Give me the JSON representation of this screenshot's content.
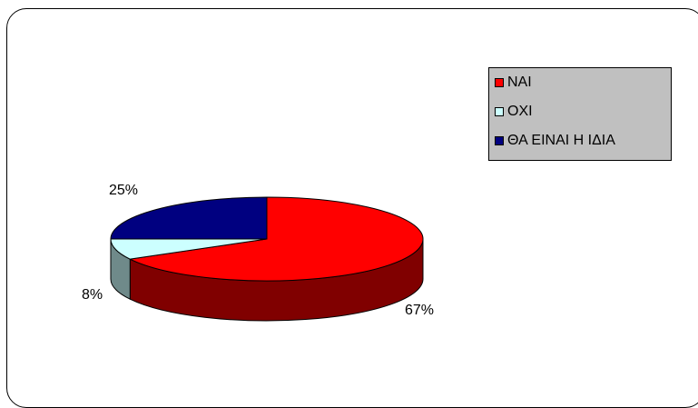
{
  "chart_data": {
    "type": "pie",
    "three_d": true,
    "categories": [
      "ΝΑΙ",
      "ΟΧΙ",
      "ΘΑ ΕΙΝΑΙ Η ΙΔΙΑ"
    ],
    "values": [
      67,
      8,
      25
    ],
    "data_labels": [
      "67%",
      "8%",
      "25%"
    ],
    "colors": [
      "#ff0000",
      "#ccffff",
      "#000080"
    ],
    "side_colors": [
      "#800000",
      "#6f8a8a",
      "#000040"
    ],
    "legend_position": "top-right",
    "legend_background": "#c0c0c0"
  }
}
